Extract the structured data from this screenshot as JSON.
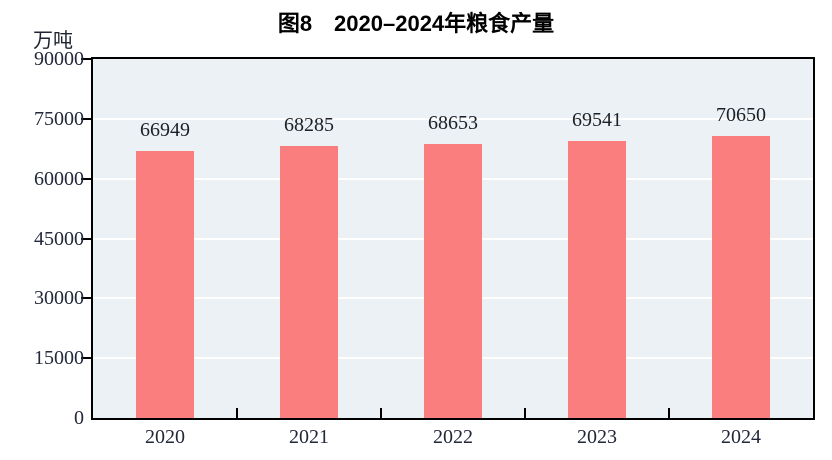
{
  "page": {
    "title": "图8　2020–2024年粮食产量",
    "unit_label": "万吨"
  },
  "chart_data": {
    "type": "bar",
    "title": "图8　2020–2024年粮食产量",
    "unit_label": "万吨",
    "categories": [
      "2020",
      "2021",
      "2022",
      "2023",
      "2024"
    ],
    "values": [
      66949,
      68285,
      68653,
      69541,
      70650
    ],
    "data_labels": [
      66949,
      68285,
      68653,
      69541,
      70650
    ],
    "xlabel": "",
    "ylabel": "万吨",
    "ylim": [
      0,
      90000
    ],
    "ytick_step": 15000,
    "yticks": [
      0,
      15000,
      30000,
      45000,
      60000,
      75000,
      90000
    ],
    "grid": "horizontal",
    "legend": "none",
    "colors": {
      "bar": "#FB7E7E",
      "plot_background": "#ECF1F6",
      "gridline": "#FFFFFF",
      "axis_border": "#000000",
      "text": "#23283a",
      "title_text": "#000000"
    }
  }
}
